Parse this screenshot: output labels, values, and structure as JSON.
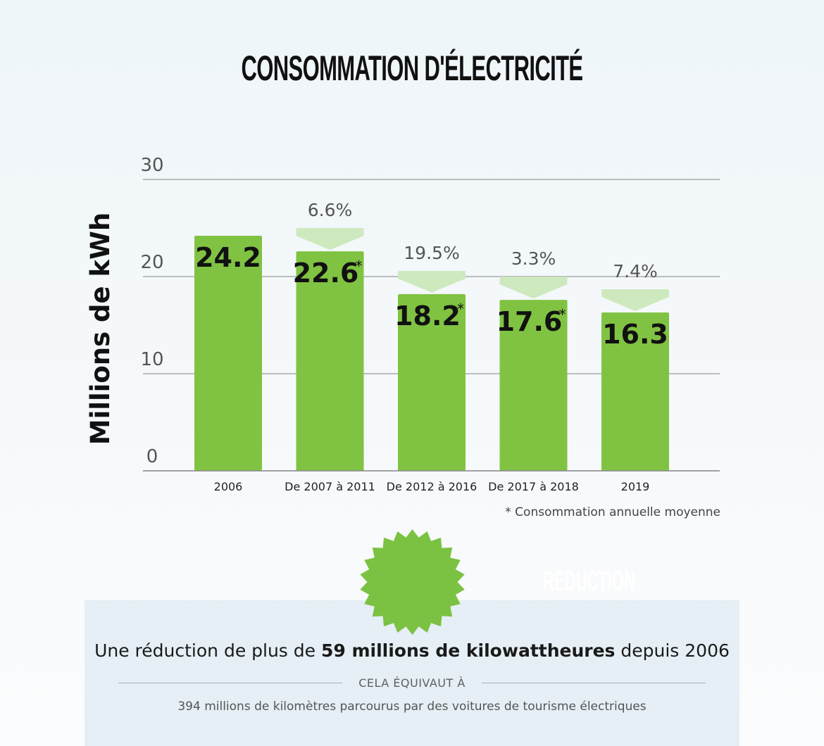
{
  "chart_data": {
    "type": "bar",
    "title": "CONSOMMATION D'ÉLECTRICITÉ",
    "ylabel": "Millions de kWh",
    "xlabel": "",
    "ylim": [
      0,
      30
    ],
    "yticks": [
      0,
      10,
      20,
      30
    ],
    "grid": true,
    "categories": [
      "2006",
      "De 2007 à 2011",
      "De 2012 à 2016",
      "De 2017 à 2018",
      "2019"
    ],
    "values": [
      24.2,
      22.6,
      18.2,
      17.6,
      16.3
    ],
    "value_labels": [
      "24.2",
      "22.6",
      "18.2",
      "17.6",
      "16.3"
    ],
    "asterisk": [
      false,
      true,
      true,
      true,
      false
    ],
    "reductions": [
      null,
      "6.6%",
      "19.5%",
      "3.3%",
      "7.4%"
    ],
    "footnote": "* Consommation annuelle moyenne",
    "bar_color": "#80c342",
    "reduction_color": "#cfe9bf"
  },
  "summary": {
    "badge": "RÉDUCTION",
    "headline_pre": "Une réduction de plus de ",
    "headline_bold": "59 millions de kilowattheures",
    "headline_post": " depuis 2006",
    "equiv_label": "CELA ÉQUIVAUT À",
    "equiv_text": "394 millions de kilomètres parcourus par des voitures de tourisme électriques",
    "badge_color": "#7cc242"
  }
}
